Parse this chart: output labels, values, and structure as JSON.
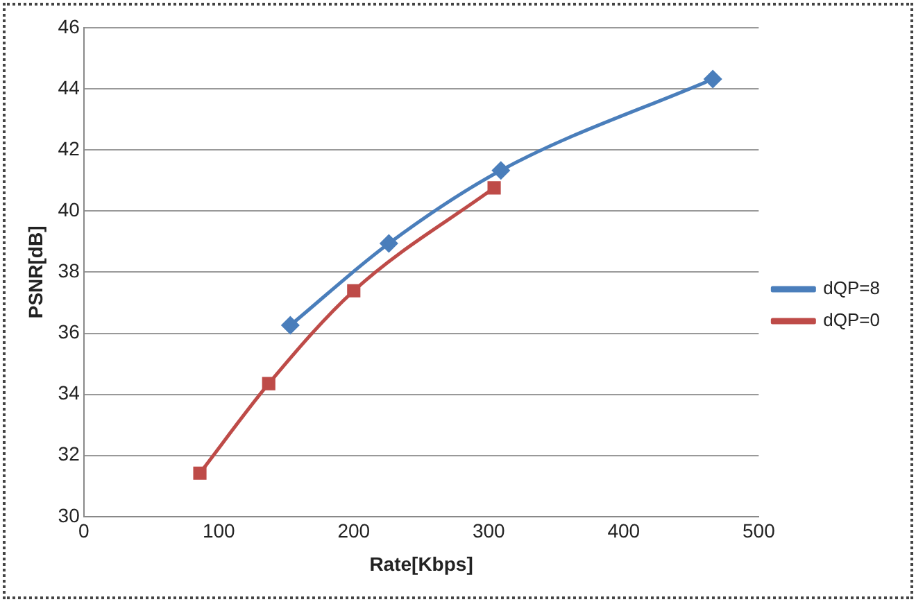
{
  "chart_data": {
    "type": "line",
    "xlabel": "Rate[Kbps]",
    "ylabel": "PSNR[dB]",
    "series": [
      {
        "name": "dQP=8",
        "color": "#4a7ebb",
        "marker": "diamond",
        "x": [
          153,
          226,
          309,
          466
        ],
        "values": [
          36.26,
          38.94,
          41.33,
          44.32
        ]
      },
      {
        "name": "dQP=0",
        "color": "#be4b48",
        "marker": "square",
        "x": [
          86,
          137,
          200,
          304
        ],
        "values": [
          31.42,
          34.35,
          37.39,
          40.76
        ]
      }
    ],
    "xlim": [
      0,
      500
    ],
    "xticks": [
      0,
      100,
      200,
      300,
      400,
      500
    ],
    "ylim": [
      30,
      46
    ],
    "yticks": [
      30,
      32,
      34,
      36,
      38,
      40,
      42,
      44,
      46
    ],
    "grid": "y",
    "legend": "right",
    "line_style": "solid"
  }
}
